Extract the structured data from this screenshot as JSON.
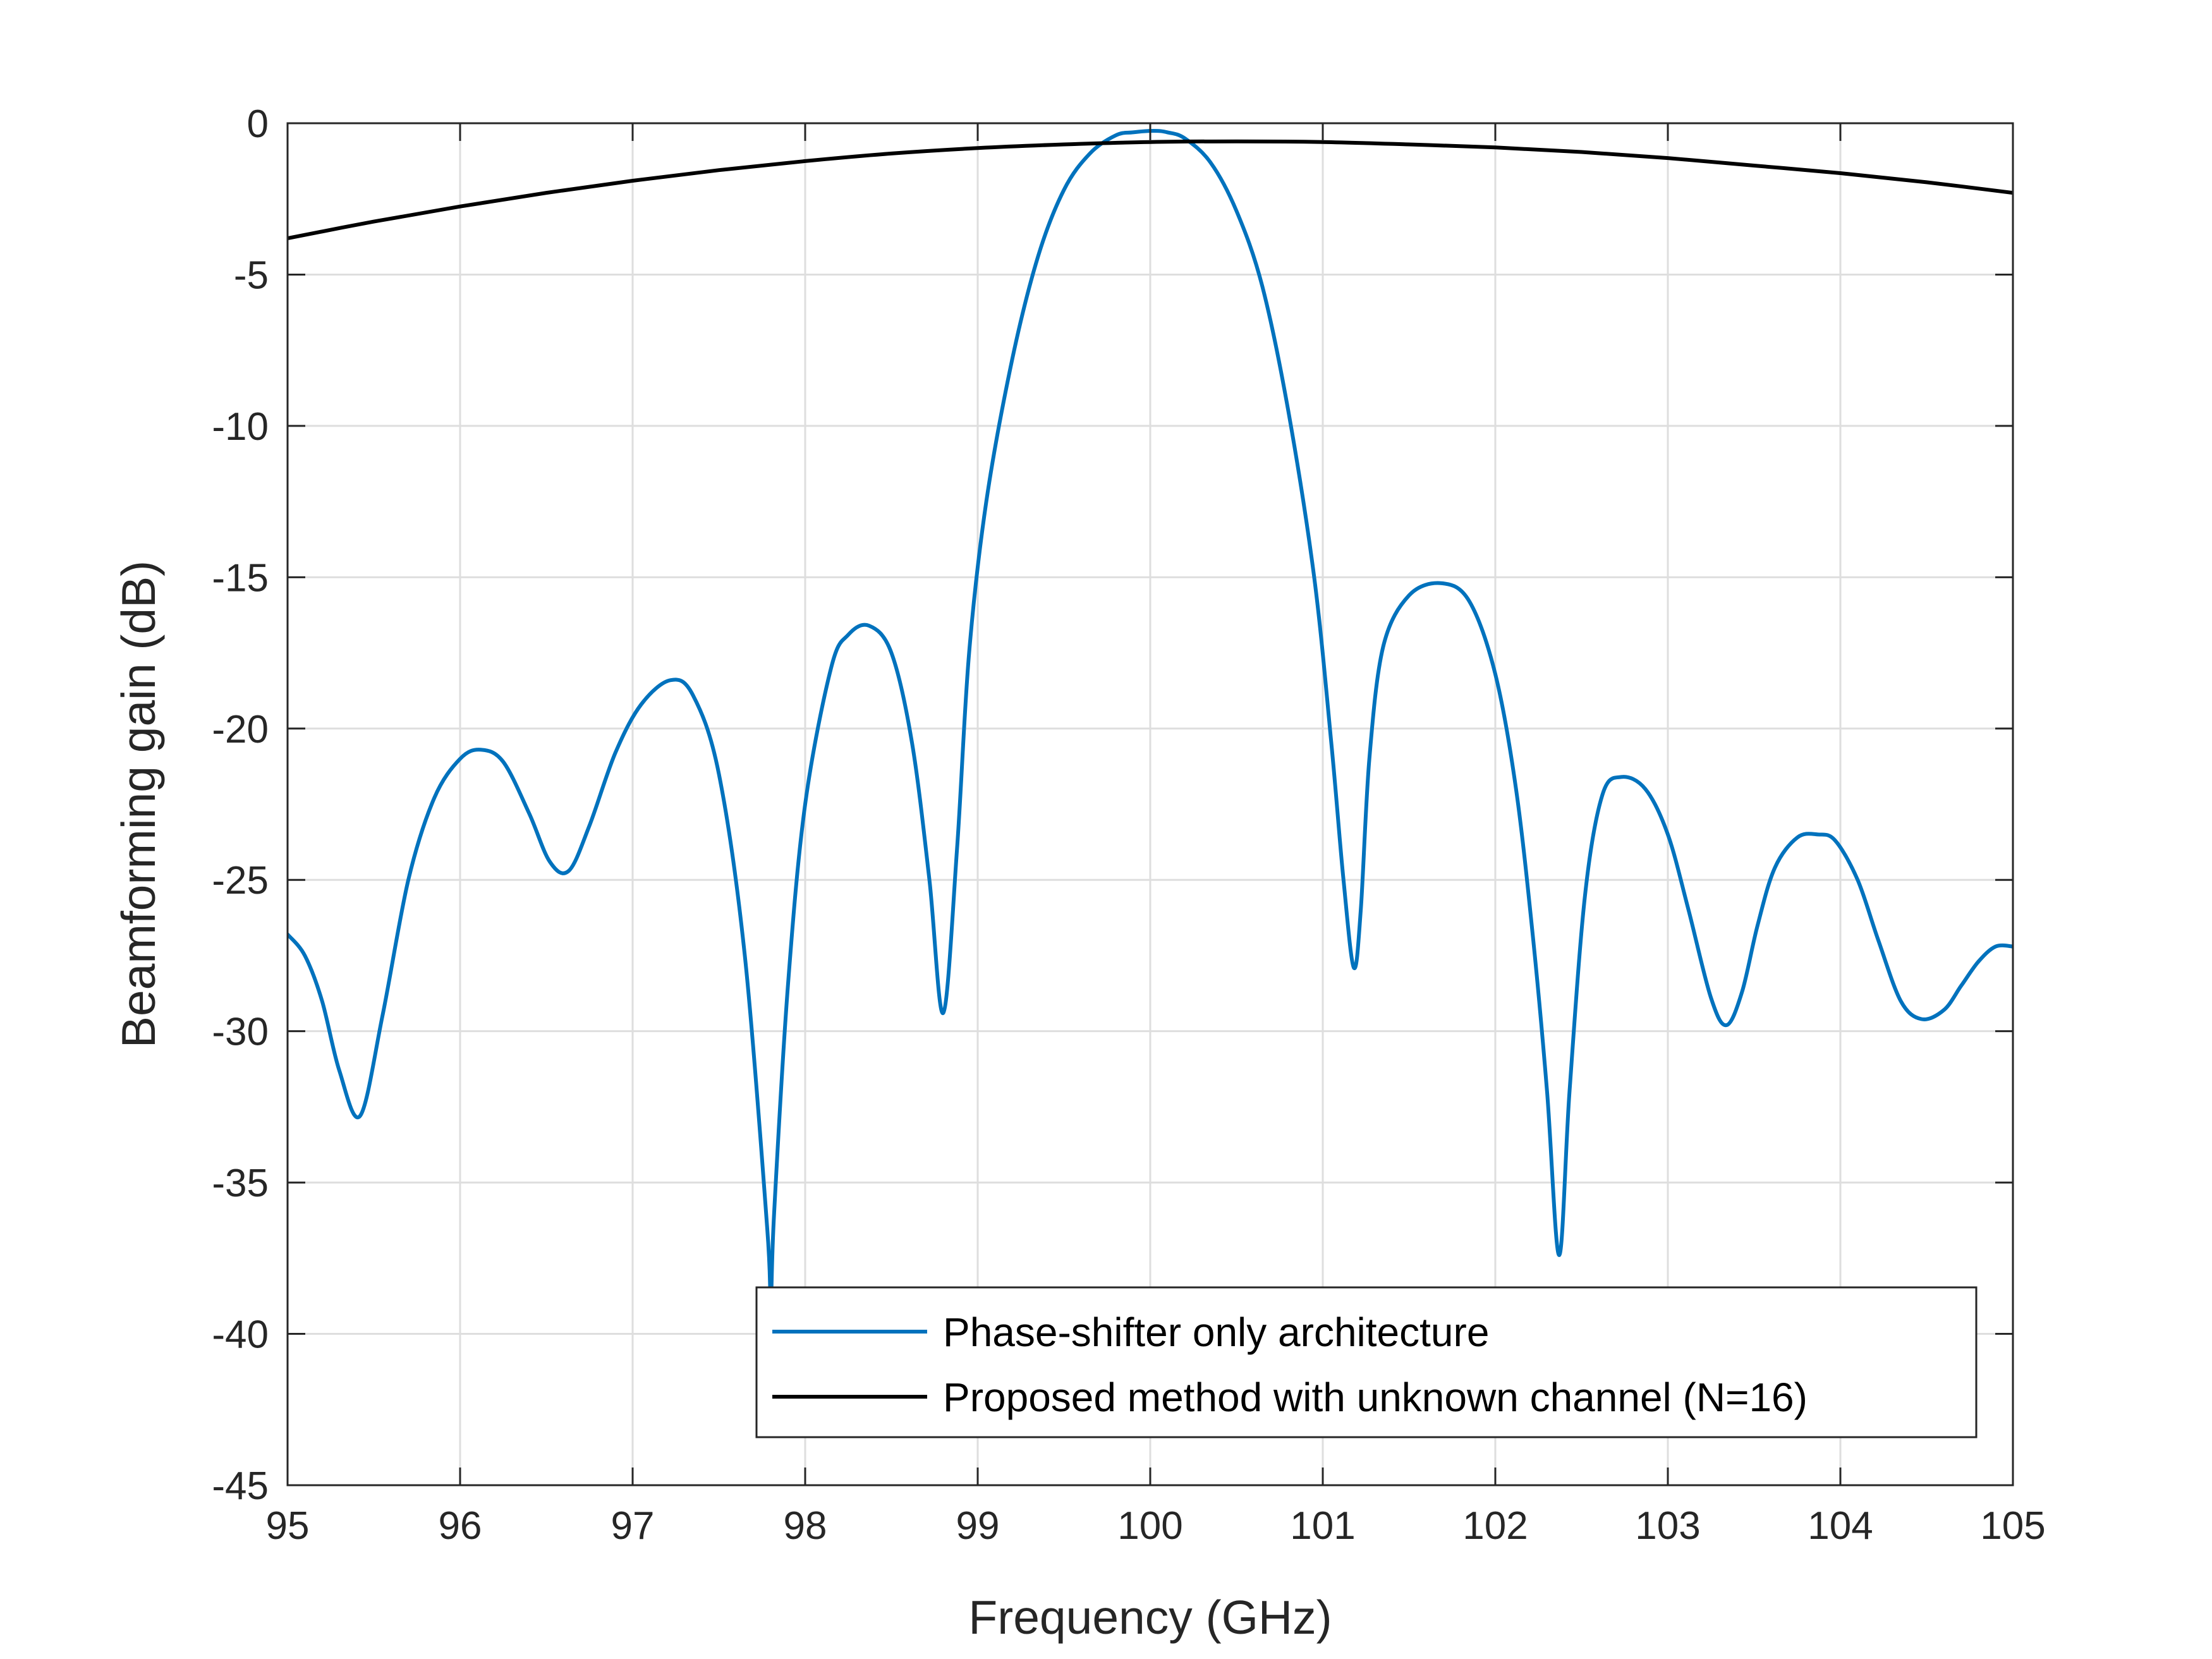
{
  "chart_data": {
    "type": "line",
    "xlabel": "Frequency (GHz)",
    "ylabel": "Beamforming gain (dB)",
    "xlim": [
      95,
      105
    ],
    "ylim": [
      -45,
      0
    ],
    "x_ticks": [
      95,
      96,
      97,
      98,
      99,
      100,
      101,
      102,
      103,
      104,
      105
    ],
    "y_ticks": [
      0,
      -5,
      -10,
      -15,
      -20,
      -25,
      -30,
      -35,
      -40,
      -45
    ],
    "grid": true,
    "legend_position": "bottom-right",
    "series": [
      {
        "name": "Phase-shifter only architecture",
        "color": "#0072BD",
        "x": [
          95.0,
          95.1,
          95.2,
          95.3,
          95.42,
          95.55,
          95.7,
          95.85,
          96.0,
          96.12,
          96.25,
          96.4,
          96.52,
          96.63,
          96.75,
          96.9,
          97.05,
          97.22,
          97.35,
          97.5,
          97.65,
          97.78,
          97.8,
          97.82,
          97.9,
          98.0,
          98.15,
          98.25,
          98.37,
          98.5,
          98.62,
          98.72,
          98.8,
          98.88,
          98.95,
          99.05,
          99.2,
          99.35,
          99.5,
          99.65,
          99.8,
          99.9,
          100.02,
          100.1,
          100.2,
          100.35,
          100.5,
          100.65,
          100.8,
          100.95,
          101.05,
          101.12,
          101.18,
          101.22,
          101.27,
          101.35,
          101.5,
          101.69,
          101.85,
          102.0,
          102.12,
          102.22,
          102.3,
          102.37,
          102.43,
          102.52,
          102.62,
          102.73,
          102.87,
          103.0,
          103.12,
          103.25,
          103.34,
          103.43,
          103.52,
          103.62,
          103.75,
          103.87,
          103.97,
          104.1,
          104.22,
          104.35,
          104.47,
          104.6,
          104.7,
          104.8,
          104.9,
          105.0
        ],
        "values": [
          -26.8,
          -27.5,
          -29.0,
          -31.3,
          -32.8,
          -29.5,
          -25.0,
          -22.3,
          -21.0,
          -20.7,
          -21.1,
          -22.8,
          -24.4,
          -24.7,
          -23.2,
          -20.8,
          -19.2,
          -18.4,
          -18.9,
          -21.5,
          -27.5,
          -36.5,
          -39.0,
          -36.0,
          -28.5,
          -22.5,
          -18.0,
          -16.9,
          -16.6,
          -17.5,
          -20.5,
          -25.0,
          -29.4,
          -24.0,
          -17.5,
          -12.5,
          -7.8,
          -4.4,
          -2.2,
          -1.0,
          -0.4,
          -0.3,
          -0.25,
          -0.3,
          -0.5,
          -1.3,
          -2.9,
          -5.4,
          -9.5,
          -15.0,
          -20.5,
          -25.0,
          -27.9,
          -26.0,
          -21.0,
          -17.3,
          -15.6,
          -15.2,
          -15.8,
          -18.2,
          -22.0,
          -27.0,
          -32.0,
          -37.4,
          -32.0,
          -25.5,
          -22.2,
          -21.6,
          -22.0,
          -23.5,
          -26.0,
          -28.9,
          -29.8,
          -28.7,
          -26.5,
          -24.6,
          -23.6,
          -23.5,
          -23.7,
          -25.0,
          -27.0,
          -29.0,
          -29.6,
          -29.3,
          -28.5,
          -27.7,
          -27.2,
          -27.2
        ]
      },
      {
        "name": "Proposed method with unknown channel (N=16)",
        "color": "#000000",
        "x": [
          95.0,
          95.5,
          96.0,
          96.5,
          97.0,
          97.5,
          98.0,
          98.5,
          99.0,
          99.5,
          100.0,
          100.5,
          101.0,
          101.5,
          102.0,
          102.5,
          103.0,
          103.5,
          104.0,
          104.5,
          105.0
        ],
        "values": [
          -3.8,
          -3.25,
          -2.75,
          -2.3,
          -1.9,
          -1.55,
          -1.25,
          -1.0,
          -0.82,
          -0.7,
          -0.62,
          -0.6,
          -0.62,
          -0.7,
          -0.8,
          -0.95,
          -1.15,
          -1.4,
          -1.65,
          -1.95,
          -2.3
        ]
      }
    ]
  }
}
